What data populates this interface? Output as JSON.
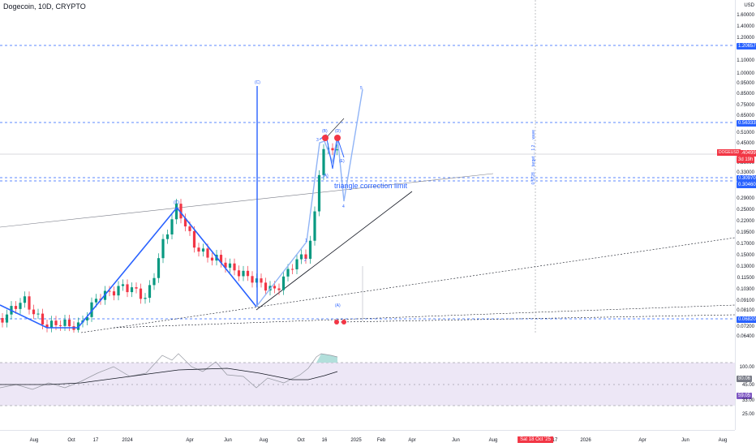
{
  "header": {
    "symbol_title": "Dogecoin, 10D, CRYPTO"
  },
  "price_axis": {
    "currency": "USD",
    "ticks": [
      "1.60000",
      "1.40000",
      "1.20000",
      "1.10000",
      "1.00000",
      "0.95000",
      "0.85000",
      "0.75000",
      "0.65000",
      "0.51000",
      "0.45000",
      "0.36000",
      "0.33000",
      "0.29000",
      "0.25000",
      "0.22000",
      "0.19500",
      "0.17000",
      "0.15000",
      "0.13000",
      "0.11500",
      "0.10300",
      "0.09100",
      "0.08100",
      "0.07200",
      "0.06400"
    ],
    "tags": {
      "level_top": "1.20657",
      "level_mid": "0.56333",
      "current": "0.40499",
      "current_sub": "3d 19h",
      "level_a": "0.30970",
      "level_b": "0.30460",
      "level_low": "0.06820"
    },
    "symbol_tag": "DOGEUSD"
  },
  "rsi_axis": {
    "ticks": [
      "100.00",
      "45.00",
      "33.00",
      "25.00"
    ],
    "tag_top": "80.06",
    "tag_rsi": "59.05"
  },
  "time_axis": {
    "ticks": [
      "Aug",
      "Oct",
      "17",
      "2024",
      "Apr",
      "Jun",
      "Aug",
      "Oct",
      "16",
      "2025",
      "Feb",
      "Apr",
      "Jun",
      "Aug",
      "17",
      "2026",
      "Apr",
      "Jun",
      "Aug"
    ],
    "date_tag": "Sat 18 Oct '25"
  },
  "annotations": {
    "triangle": "triangle correction limit",
    "vertical_note": "0.5728 ... target ... 1.2 ... wave",
    "wave_labels": [
      "(C)",
      "(C)",
      "(B)",
      "(D)",
      "(A)",
      "(E)",
      "1",
      "2",
      "3",
      "4",
      "5",
      "(A)"
    ]
  },
  "colors": {
    "up": "#089981",
    "down": "#f23645",
    "wave": "#2962ff",
    "wave_light": "#90b4f6",
    "rsi": "#7e57c2",
    "rsi_band": "#ede7f6"
  }
}
